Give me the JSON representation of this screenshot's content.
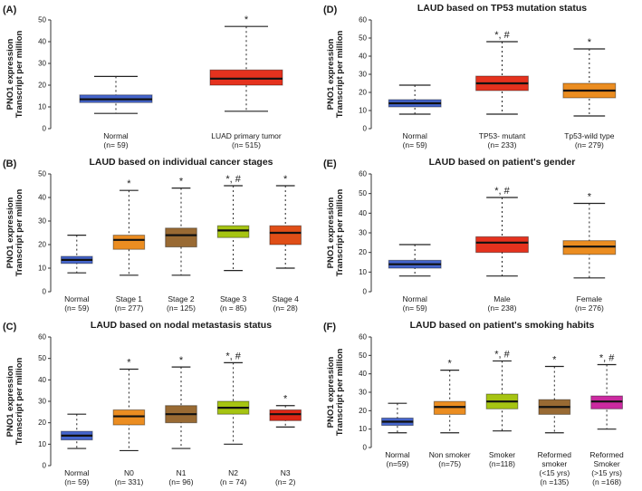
{
  "figure": {
    "background": "#ffffff",
    "ylabel_lines": [
      "PNO1 expression",
      "Transcript per million"
    ]
  },
  "chart_data": [
    {
      "type": "box",
      "panel_letter": "(A)",
      "title": "",
      "ylabel": "PNO1 expression Transcript per million",
      "ylim": [
        0,
        50
      ],
      "ytick_step": 10,
      "grid": false,
      "groups": [
        {
          "label_lines": [
            "Normal",
            "(n= 59)"
          ],
          "color": "#4565cc",
          "low": 7,
          "q1": 12,
          "median": 13.5,
          "q3": 15.5,
          "high": 24,
          "annotation": ""
        },
        {
          "label_lines": [
            "LUAD primary tumor",
            "(n= 515)"
          ],
          "color": "#e5321e",
          "low": 8,
          "q1": 20,
          "median": 23,
          "q3": 27,
          "high": 47,
          "annotation": "*"
        }
      ]
    },
    {
      "type": "box",
      "panel_letter": "(B)",
      "title": "LAUD based on individual cancer stages",
      "ylabel": "PNO1 expression Transcript per million",
      "ylim": [
        0,
        50
      ],
      "ytick_step": 10,
      "grid": false,
      "groups": [
        {
          "label_lines": [
            "Normal",
            "(n= 59)"
          ],
          "color": "#4565cc",
          "low": 8,
          "q1": 12,
          "median": 13.5,
          "q3": 15,
          "high": 24,
          "annotation": ""
        },
        {
          "label_lines": [
            "Stage 1",
            "(n= 277)"
          ],
          "color": "#eb8d21",
          "low": 7,
          "q1": 18,
          "median": 22,
          "q3": 24,
          "high": 43,
          "annotation": "*"
        },
        {
          "label_lines": [
            "Stage 2",
            "(n= 125)"
          ],
          "color": "#996a33",
          "low": 7,
          "q1": 19,
          "median": 24,
          "q3": 27,
          "high": 44,
          "annotation": "*"
        },
        {
          "label_lines": [
            "Stage 3",
            "(n = 85)"
          ],
          "color": "#a6c412",
          "low": 9,
          "q1": 23,
          "median": 26,
          "q3": 28,
          "high": 45,
          "annotation": "*, #"
        },
        {
          "label_lines": [
            "Stage 4",
            "(n= 28)"
          ],
          "color": "#e04e17",
          "low": 10,
          "q1": 20,
          "median": 25,
          "q3": 28,
          "high": 45,
          "annotation": "*"
        }
      ]
    },
    {
      "type": "box",
      "panel_letter": "(C)",
      "title": "LAUD based on nodal metastasis status",
      "ylabel": "PNO1 expression Transcript per million",
      "ylim": [
        0,
        60
      ],
      "ytick_step": 10,
      "grid": false,
      "groups": [
        {
          "label_lines": [
            "Normal",
            "(n= 59)"
          ],
          "color": "#4565cc",
          "low": 8,
          "q1": 12,
          "median": 14,
          "q3": 16,
          "high": 24,
          "annotation": ""
        },
        {
          "label_lines": [
            "N0",
            "(n= 331)"
          ],
          "color": "#eb8d21",
          "low": 7,
          "q1": 19,
          "median": 23,
          "q3": 26,
          "high": 45,
          "annotation": "*"
        },
        {
          "label_lines": [
            "N1",
            "(n= 96)"
          ],
          "color": "#996a33",
          "low": 8,
          "q1": 20,
          "median": 24,
          "q3": 28,
          "high": 46,
          "annotation": "*"
        },
        {
          "label_lines": [
            "N2",
            "(n = 74)"
          ],
          "color": "#a6c412",
          "low": 10,
          "q1": 24,
          "median": 27,
          "q3": 30,
          "high": 48,
          "annotation": "*, #"
        },
        {
          "label_lines": [
            "N3",
            "(n= 2)"
          ],
          "color": "#dd2615",
          "low": 18,
          "q1": 21,
          "median": 24,
          "q3": 26,
          "high": 28,
          "annotation": "*"
        }
      ]
    },
    {
      "type": "box",
      "panel_letter": "(D)",
      "title": "LAUD based on TP53 mutation status",
      "ylabel": "PNO1 expression Transcript per million",
      "ylim": [
        0,
        60
      ],
      "ytick_step": 10,
      "grid": false,
      "groups": [
        {
          "label_lines": [
            "Normal",
            "(n= 59)"
          ],
          "color": "#4565cc",
          "low": 8,
          "q1": 12,
          "median": 14,
          "q3": 16,
          "high": 24,
          "annotation": ""
        },
        {
          "label_lines": [
            "TP53- mutant",
            "(n= 233)"
          ],
          "color": "#e5321e",
          "low": 8,
          "q1": 21,
          "median": 25,
          "q3": 29,
          "high": 48,
          "annotation": "*, #"
        },
        {
          "label_lines": [
            "Tp53-wild type",
            "(n= 279)"
          ],
          "color": "#eb8d21",
          "low": 7,
          "q1": 17,
          "median": 21,
          "q3": 25,
          "high": 44,
          "annotation": "*"
        }
      ]
    },
    {
      "type": "box",
      "panel_letter": "(E)",
      "title": "LAUD based on patient's gender",
      "ylabel": "PNO1 expression Transcript per million",
      "ylim": [
        0,
        60
      ],
      "ytick_step": 10,
      "grid": false,
      "groups": [
        {
          "label_lines": [
            "Normal",
            "(n= 59)"
          ],
          "color": "#4565cc",
          "low": 8,
          "q1": 12,
          "median": 14,
          "q3": 16,
          "high": 24,
          "annotation": ""
        },
        {
          "label_lines": [
            "Male",
            "(n= 238)"
          ],
          "color": "#e5321e",
          "low": 8,
          "q1": 20,
          "median": 25,
          "q3": 28,
          "high": 48,
          "annotation": "*, #"
        },
        {
          "label_lines": [
            "Female",
            "(n= 276)"
          ],
          "color": "#eb8d21",
          "low": 7,
          "q1": 19,
          "median": 23,
          "q3": 26,
          "high": 45,
          "annotation": "*"
        }
      ]
    },
    {
      "type": "box",
      "panel_letter": "(F)",
      "title": "LAUD based on patient's smoking habits",
      "ylabel": "PNO1 expression Transcript per million",
      "ylim": [
        0,
        60
      ],
      "ytick_step": 10,
      "grid": false,
      "groups": [
        {
          "label_lines": [
            "Normal",
            "(n=59)"
          ],
          "color": "#4565cc",
          "low": 8,
          "q1": 12,
          "median": 14,
          "q3": 16,
          "high": 24,
          "annotation": ""
        },
        {
          "label_lines": [
            "Non smoker",
            "(n=75)"
          ],
          "color": "#eb8d21",
          "low": 8,
          "q1": 18,
          "median": 22,
          "q3": 25,
          "high": 42,
          "annotation": "*"
        },
        {
          "label_lines": [
            "Smoker",
            "(n=118)"
          ],
          "color": "#a6c412",
          "low": 9,
          "q1": 21,
          "median": 25,
          "q3": 29,
          "high": 47,
          "annotation": "*, #"
        },
        {
          "label_lines": [
            "Reformed",
            "smoker",
            "(<15 yrs)",
            "(n =135)"
          ],
          "color": "#996a33",
          "low": 8,
          "q1": 18,
          "median": 22,
          "q3": 26,
          "high": 44,
          "annotation": "*"
        },
        {
          "label_lines": [
            "Reformed",
            "Smoker",
            "(>15 yrs)",
            "(n =168)"
          ],
          "color": "#cb2aa0",
          "low": 10,
          "q1": 21,
          "median": 25,
          "q3": 28,
          "high": 45,
          "annotation": "*, #"
        }
      ]
    }
  ]
}
